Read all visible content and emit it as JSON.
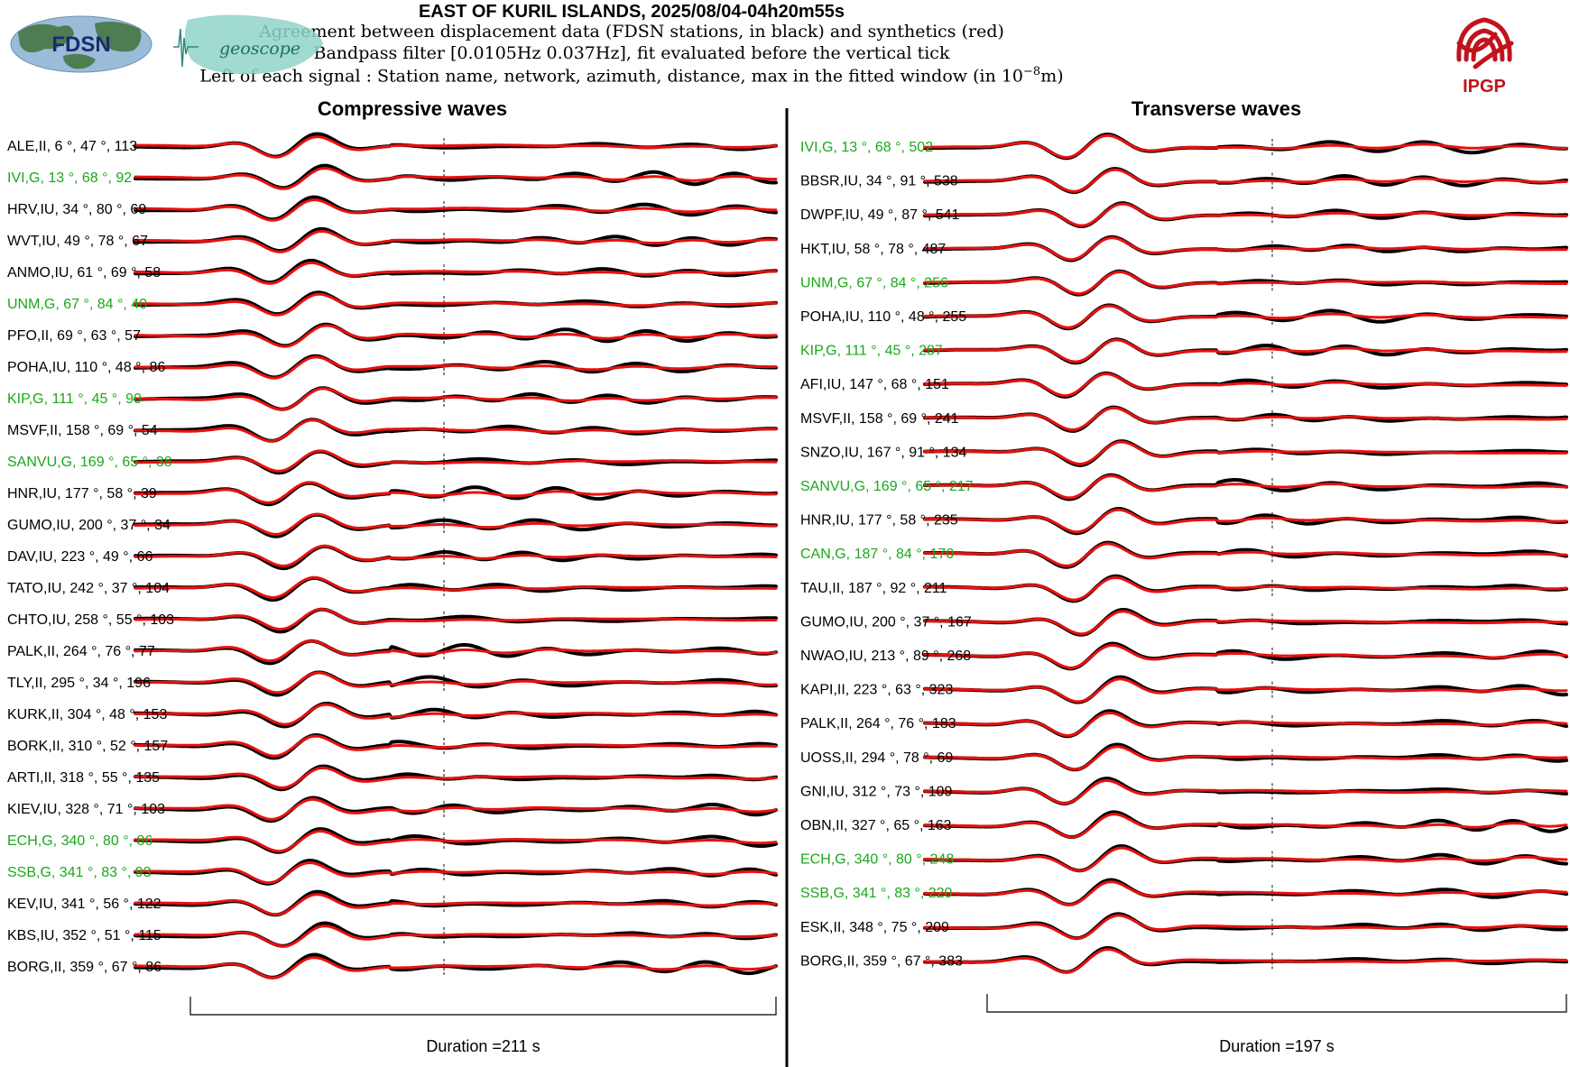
{
  "header": {
    "title": "EAST OF KURIL ISLANDS, 2025/08/04-04h20m55s",
    "line1": "Agreement between displacement data (FDSN stations, in black) and synthetics (red)",
    "line2": "Bandpass filter [0.0105Hz 0.037Hz], fit evaluated before the vertical tick",
    "line3_prefix": "Left of each signal : Station name, network, azimuth, distance, max in the fitted window (in 10",
    "line3_exp": "−8",
    "line3_suffix": "m)"
  },
  "logos": {
    "fdsn_text": "FDSN",
    "geoscope_text": "geoscope",
    "ipgp_text": "IPGP"
  },
  "colors": {
    "data": "#000000",
    "synthetic": "#e8110f",
    "green_label": "#1aa81a",
    "ipgp_red": "#c0141c",
    "fdsn_blue": "#4a7fb0",
    "geoscope_teal": "#7cc8bd"
  },
  "chart_data": [
    {
      "type": "line",
      "title": "Compressive waves",
      "duration_label": "Duration =211 s",
      "duration_s": 211,
      "series": [
        {
          "name": "data",
          "color": "#000000"
        },
        {
          "name": "synthetics",
          "color": "#e8110f"
        }
      ],
      "stations": [
        {
          "label": "ALE,II, 6 °, 47 °, 113",
          "green": false
        },
        {
          "label": "IVI,G, 13 °, 68 °, 92",
          "green": true
        },
        {
          "label": "HRV,IU, 34 °, 80 °, 69",
          "green": false
        },
        {
          "label": "WVT,IU, 49 °, 78 °, 67",
          "green": false
        },
        {
          "label": "ANMO,IU, 61 °, 69 °, 58",
          "green": false
        },
        {
          "label": "UNM,G, 67 °, 84 °, 40",
          "green": true
        },
        {
          "label": "PFO,II, 69 °, 63 °, 57",
          "green": false
        },
        {
          "label": "POHA,IU, 110 °, 48 °, 86",
          "green": false
        },
        {
          "label": "KIP,G, 111 °, 45 °, 90",
          "green": true
        },
        {
          "label": "MSVF,II, 158 °, 69 °, 54",
          "green": false
        },
        {
          "label": "SANVU,G, 169 °, 65 °, 38",
          "green": true
        },
        {
          "label": "HNR,IU, 177 °, 58 °, 39",
          "green": false
        },
        {
          "label": "GUMO,IU, 200 °, 37 °, 34",
          "green": false
        },
        {
          "label": "DAV,IU, 223 °, 49 °, 66",
          "green": false
        },
        {
          "label": "TATO,IU, 242 °, 37 °, 104",
          "green": false
        },
        {
          "label": "CHTO,IU, 258 °, 55 °, 103",
          "green": false
        },
        {
          "label": "PALK,II, 264 °, 76 °, 77",
          "green": false
        },
        {
          "label": "TLY,II, 295 °, 34 °, 196",
          "green": false
        },
        {
          "label": "KURK,II, 304 °, 48 °, 153",
          "green": false
        },
        {
          "label": "BORK,II, 310 °, 52 °, 157",
          "green": false
        },
        {
          "label": "ARTI,II, 318 °, 55 °, 135",
          "green": false
        },
        {
          "label": "KIEV,IU, 328 °, 71 °, 103",
          "green": false
        },
        {
          "label": "ECH,G, 340 °, 80 °, 86",
          "green": true
        },
        {
          "label": "SSB,G, 341 °, 83 °, 93",
          "green": true
        },
        {
          "label": "KEV,IU, 341 °, 56 °, 122",
          "green": false
        },
        {
          "label": "KBS,IU, 352 °, 51 °, 115",
          "green": false
        },
        {
          "label": "BORG,II, 359 °, 67 °, 86",
          "green": false
        }
      ]
    },
    {
      "type": "line",
      "title": "Transverse waves",
      "duration_label": "Duration =197 s",
      "duration_s": 197,
      "series": [
        {
          "name": "data",
          "color": "#000000"
        },
        {
          "name": "synthetics",
          "color": "#e8110f"
        }
      ],
      "stations": [
        {
          "label": "IVI,G, 13 °, 68 °, 502",
          "green": true
        },
        {
          "label": "BBSR,IU, 34 °, 91 °, 538",
          "green": false
        },
        {
          "label": "DWPF,IU, 49 °, 87 °, 541",
          "green": false
        },
        {
          "label": "HKT,IU, 58 °, 78 °, 487",
          "green": false
        },
        {
          "label": "UNM,G, 67 °, 84 °, 256",
          "green": true
        },
        {
          "label": "POHA,IU, 110 °, 48 °, 255",
          "green": false
        },
        {
          "label": "KIP,G, 111 °, 45 °, 287",
          "green": true
        },
        {
          "label": "AFI,IU, 147 °, 68 °, 151",
          "green": false
        },
        {
          "label": "MSVF,II, 158 °, 69 °, 241",
          "green": false
        },
        {
          "label": "SNZO,IU, 167 °, 91 °, 134",
          "green": false
        },
        {
          "label": "SANVU,G, 169 °, 65 °, 217",
          "green": true
        },
        {
          "label": "HNR,IU, 177 °, 58 °, 235",
          "green": false
        },
        {
          "label": "CAN,G, 187 °, 84 °, 170",
          "green": true
        },
        {
          "label": "TAU,II, 187 °, 92 °, 211",
          "green": false
        },
        {
          "label": "GUMO,IU, 200 °, 37 °, 167",
          "green": false
        },
        {
          "label": "NWAO,IU, 213 °, 89 °, 268",
          "green": false
        },
        {
          "label": "KAPI,II, 223 °, 63 °, 323",
          "green": false
        },
        {
          "label": "PALK,II, 264 °, 76 °, 183",
          "green": false
        },
        {
          "label": "UOSS,II, 294 °, 78 °, 69",
          "green": false
        },
        {
          "label": "GNI,IU, 312 °, 73 °, 109",
          "green": false
        },
        {
          "label": "OBN,II, 327 °, 65 °, 163",
          "green": false
        },
        {
          "label": "ECH,G, 340 °, 80 °, 248",
          "green": true
        },
        {
          "label": "SSB,G, 341 °, 83 °, 220",
          "green": true
        },
        {
          "label": "ESK,II, 348 °, 75 °, 209",
          "green": false
        },
        {
          "label": "BORG,II, 359 °, 67 °, 383",
          "green": false
        }
      ]
    }
  ]
}
